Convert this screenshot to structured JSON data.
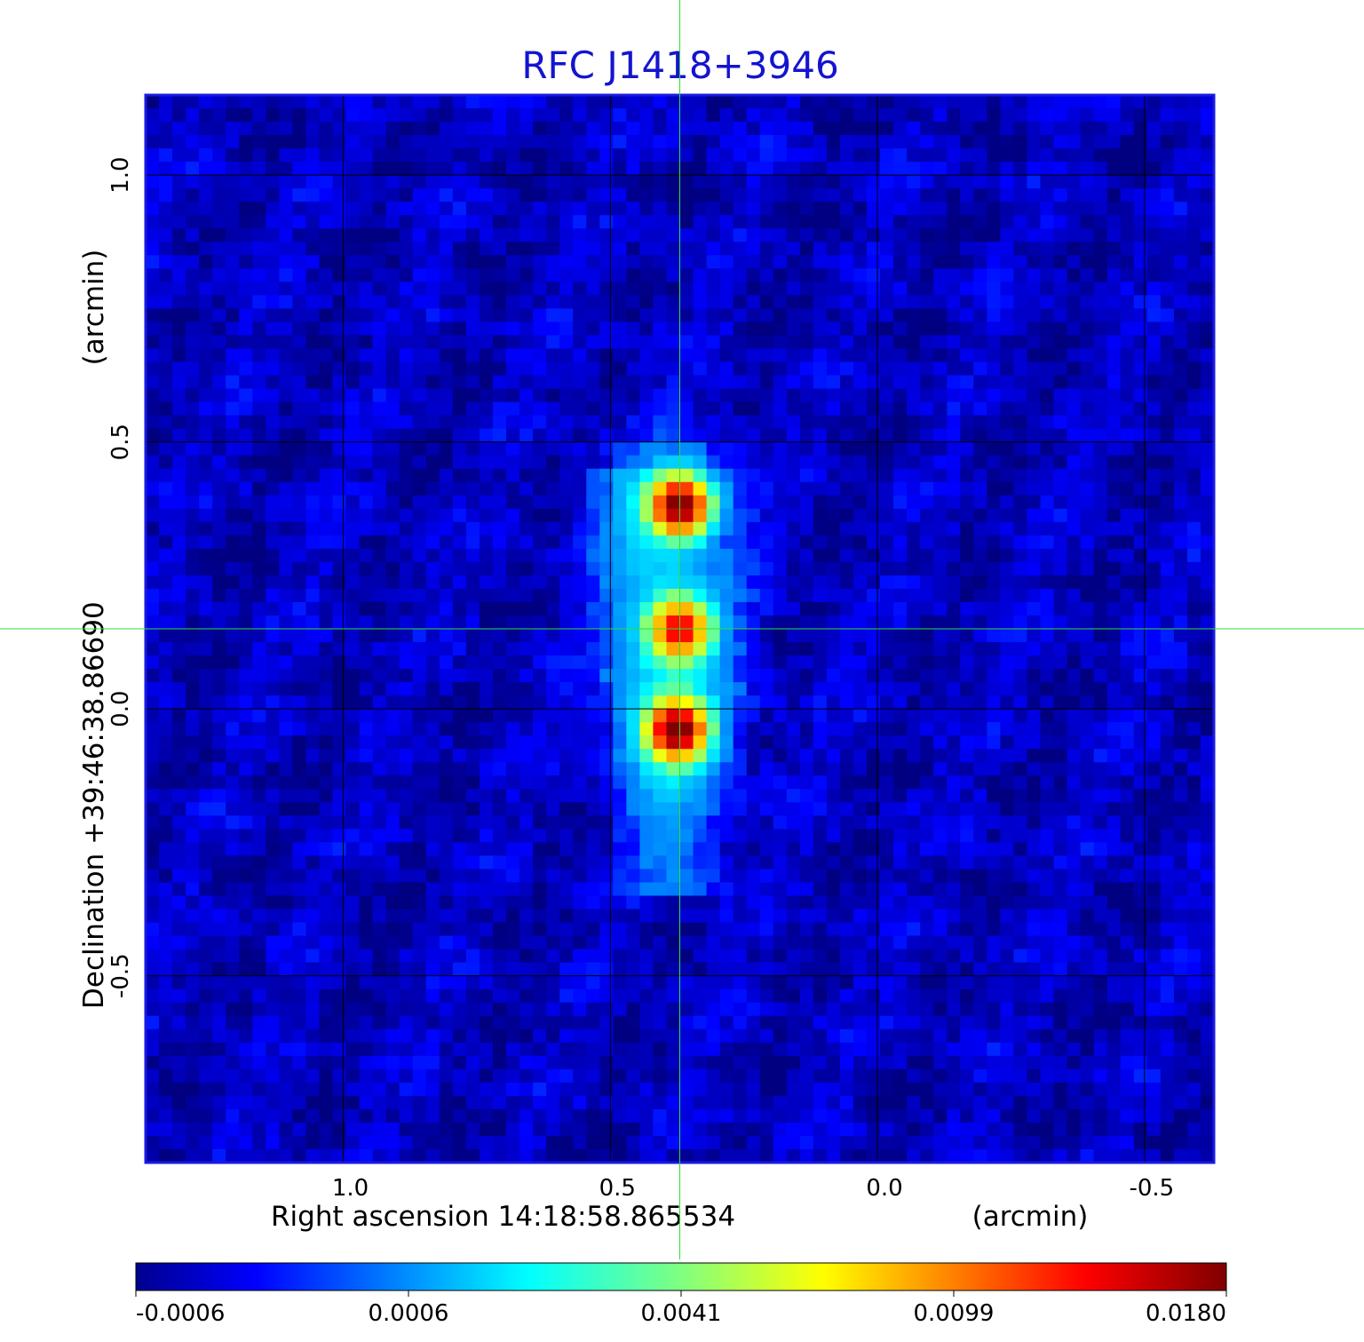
{
  "chart_data": {
    "type": "heatmap",
    "title": "RFC J1418+3946",
    "xlabel": "Right ascension  14:18:58.865534",
    "x_unit": "(arcmin)",
    "ylabel": "Declination  +39:46:38.86690",
    "y_unit": "(arcmin)",
    "xlim": [
      1.37,
      -0.63
    ],
    "ylim": [
      -0.85,
      1.15
    ],
    "x_ticks": [
      {
        "value": 1.0,
        "label": "1.0"
      },
      {
        "value": 0.5,
        "label": "0.5"
      },
      {
        "value": 0.0,
        "label": "0.0"
      },
      {
        "value": -0.5,
        "label": "-0.5"
      }
    ],
    "y_ticks": [
      {
        "value": 1.0,
        "label": "1.0"
      },
      {
        "value": 0.5,
        "label": "0.5"
      },
      {
        "value": 0.0,
        "label": "0.0"
      },
      {
        "value": -0.5,
        "label": "-0.5"
      }
    ],
    "grid": true,
    "crosshair": {
      "x": 0.37,
      "y": 0.15,
      "color": "#33dd33"
    },
    "colormap": "jet",
    "colorbar": {
      "ticks": [
        "-0.0006",
        "0.0006",
        "0.0041",
        "0.0099",
        "0.0180"
      ],
      "range": [
        -0.0006,
        0.018
      ]
    },
    "background_level": -0.0003,
    "components": [
      {
        "x": 0.37,
        "y": 0.38,
        "peak": 0.018
      },
      {
        "x": 0.37,
        "y": 0.15,
        "peak": 0.0135
      },
      {
        "x": 0.375,
        "y": -0.04,
        "peak": 0.018
      }
    ]
  },
  "colors": {
    "title": "#1414d0",
    "frame": "#1a1ae0",
    "grid": "#000000",
    "crosshair": "#33dd33"
  }
}
